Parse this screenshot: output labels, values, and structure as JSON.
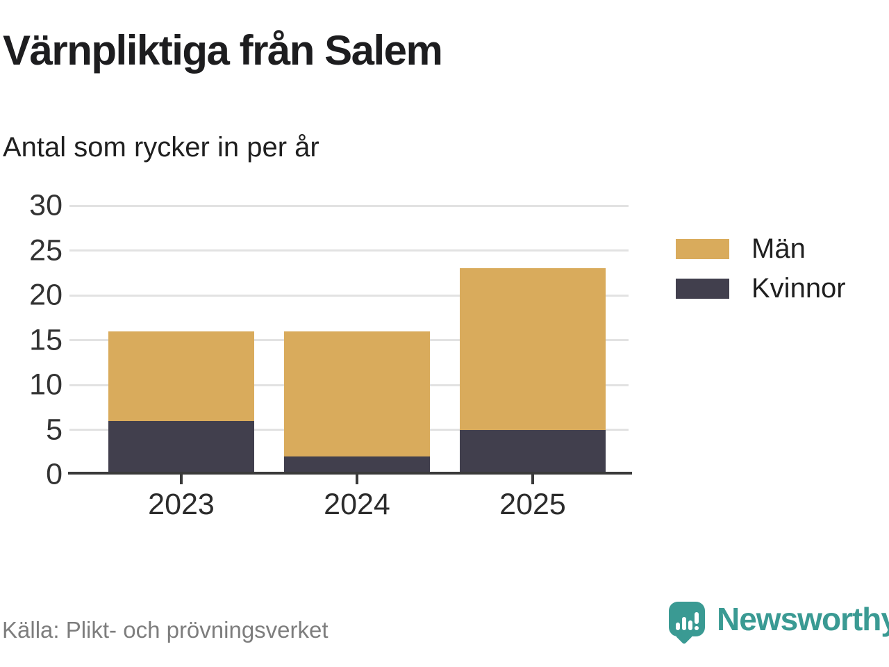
{
  "header": {
    "title": "Värnpliktiga från Salem",
    "subtitle": "Antal som rycker in per år"
  },
  "footer": {
    "source": "Källa: Plikt- och prövningsverket",
    "brand": "Newsworthy"
  },
  "colors": {
    "men_gold": "#d9ab5c",
    "women_dark": "#413f4d",
    "brand_teal": "#3a9a93",
    "gridline": "#e2e2e2",
    "axis": "#3a3a3a"
  },
  "chart_data": {
    "type": "bar",
    "stacked": true,
    "title": "Värnpliktiga från Salem",
    "subtitle": "Antal som rycker in per år",
    "categories": [
      "2023",
      "2024",
      "2025"
    ],
    "series": [
      {
        "name": "Män",
        "values": [
          10,
          14,
          18
        ],
        "color": "#d9ab5c"
      },
      {
        "name": "Kvinnor",
        "values": [
          6,
          2,
          5
        ],
        "color": "#413f4d"
      }
    ],
    "totals": [
      16,
      16,
      23
    ],
    "ylim": [
      0,
      30
    ],
    "yticks": [
      0,
      5,
      10,
      15,
      20,
      25,
      30
    ],
    "xlabel": "",
    "ylabel": "",
    "grid": "horizontal",
    "legend_position": "right"
  }
}
